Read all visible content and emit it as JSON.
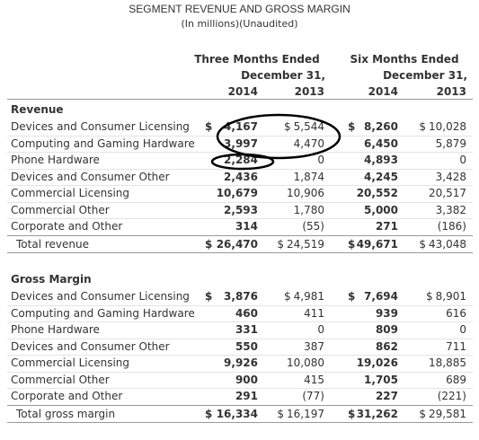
{
  "header": {
    "title": "SEGMENT REVENUE AND GROSS MARGIN",
    "subtitle": "(In millions)(Unaudited)"
  },
  "columns": {
    "groups": [
      [
        "Three Months Ended",
        "December 31,"
      ],
      [
        "Six Months Ended",
        "December 31,"
      ]
    ],
    "years": [
      "2014",
      "2013",
      "2014",
      "2013"
    ]
  },
  "sections": [
    {
      "title": "Revenue",
      "rows": [
        {
          "label": "Devices and Consumer Licensing",
          "symbols": [
            "$",
            "$",
            "$",
            "$"
          ],
          "values": [
            "4,167",
            "5,544",
            "8,260",
            "10,028"
          ]
        },
        {
          "label": "Computing and Gaming Hardware",
          "values": [
            "3,997",
            "4,470",
            "6,450",
            "5,879"
          ]
        },
        {
          "label": "Phone Hardware",
          "values": [
            "2,284",
            "0",
            "4,893",
            "0"
          ]
        },
        {
          "label": "Devices and Consumer Other",
          "values": [
            "2,436",
            "1,874",
            "4,245",
            "3,428"
          ]
        },
        {
          "label": "Commercial Licensing",
          "values": [
            "10,679",
            "10,906",
            "20,552",
            "20,517"
          ]
        },
        {
          "label": "Commercial Other",
          "values": [
            "2,593",
            "1,780",
            "5,000",
            "3,382"
          ]
        },
        {
          "label": "Corporate and Other",
          "values": [
            "314",
            "(55)",
            "271",
            "(186)"
          ]
        }
      ],
      "total": {
        "label": "Total revenue",
        "symbols": [
          "$",
          "$",
          "$",
          "$"
        ],
        "values": [
          "26,470",
          "24,519",
          "49,671",
          "43,048"
        ]
      }
    },
    {
      "title": "Gross Margin",
      "rows": [
        {
          "label": "Devices and Consumer Licensing",
          "symbols": [
            "$",
            "$",
            "$",
            "$"
          ],
          "values": [
            "3,876",
            "4,981",
            "7,694",
            "8,901"
          ]
        },
        {
          "label": "Computing and Gaming Hardware",
          "values": [
            "460",
            "411",
            "939",
            "616"
          ]
        },
        {
          "label": "Phone Hardware",
          "values": [
            "331",
            "0",
            "809",
            "0"
          ]
        },
        {
          "label": "Devices and Consumer Other",
          "values": [
            "550",
            "387",
            "862",
            "711"
          ]
        },
        {
          "label": "Commercial Licensing",
          "values": [
            "9,926",
            "10,080",
            "19,026",
            "18,885"
          ]
        },
        {
          "label": "Commercial Other",
          "values": [
            "900",
            "415",
            "1,705",
            "689"
          ]
        },
        {
          "label": "Corporate and Other",
          "values": [
            "291",
            "(77)",
            "227",
            "(221)"
          ]
        }
      ],
      "total": {
        "label": "Total gross margin",
        "symbols": [
          "$",
          "$",
          "$",
          "$"
        ],
        "values": [
          "16,334",
          "16,197",
          "31,262",
          "29,581"
        ]
      }
    }
  ]
}
